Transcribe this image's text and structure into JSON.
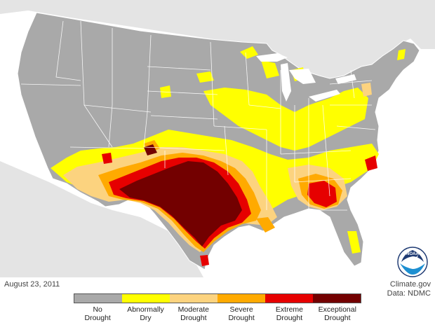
{
  "map": {
    "date_label": "August 23, 2011",
    "credit_line1": "Climate.gov",
    "credit_line2": "Data: NDMC",
    "logo_text": "NOAA"
  },
  "legend": [
    {
      "line1": "No",
      "line2": "Drought",
      "color": "#a9a9a9"
    },
    {
      "line1": "Abnormally",
      "line2": "Dry",
      "color": "#ffff00"
    },
    {
      "line1": "Moderate",
      "line2": "Drought",
      "color": "#fcd37f"
    },
    {
      "line1": "Severe",
      "line2": "Drought",
      "color": "#ffaa00"
    },
    {
      "line1": "Extreme",
      "line2": "Drought",
      "color": "#e60000"
    },
    {
      "line1": "Exceptional",
      "line2": "Drought",
      "color": "#730000"
    }
  ],
  "colors": {
    "land": "#a9a9a9",
    "background_land": "#e3e3e3",
    "water": "#ffffff",
    "borders": "#ffffff"
  }
}
